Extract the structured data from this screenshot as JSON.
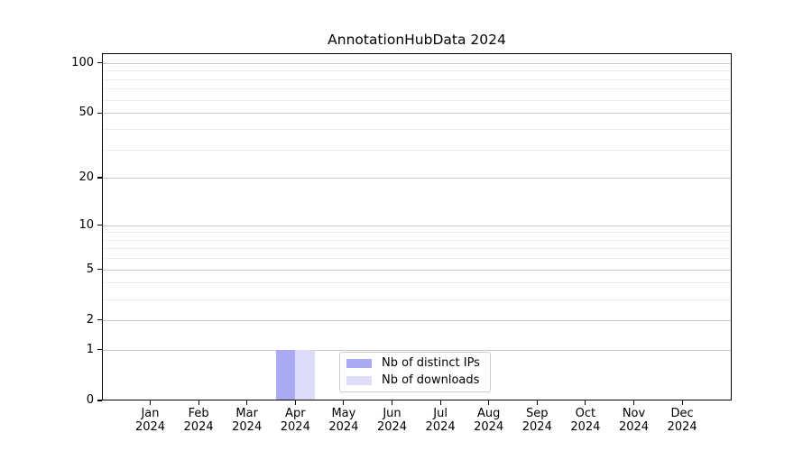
{
  "chart_data": {
    "type": "bar",
    "title": "AnnotationHubData 2024",
    "categories": [
      "Jan",
      "Feb",
      "Mar",
      "Apr",
      "May",
      "Jun",
      "Jul",
      "Aug",
      "Sep",
      "Oct",
      "Nov",
      "Dec"
    ],
    "category_sub": "2024",
    "series": [
      {
        "name": "Nb of distinct IPs",
        "color": "#aaaaf4",
        "values": [
          0,
          0,
          0,
          1,
          0,
          0,
          0,
          0,
          0,
          0,
          0,
          0
        ]
      },
      {
        "name": "Nb of downloads",
        "color": "#dcdcf8",
        "values": [
          0,
          0,
          0,
          1,
          0,
          0,
          0,
          0,
          0,
          0,
          0,
          0
        ]
      }
    ],
    "y_axis": {
      "scale": "log10(1+v)",
      "ticks": [
        0,
        1,
        2,
        5,
        10,
        20,
        50,
        100
      ],
      "minor_ticks": [
        3,
        4,
        6,
        7,
        8,
        9,
        30,
        40,
        60,
        70,
        80,
        90
      ],
      "max": 115
    },
    "xlabel": "",
    "ylabel": "",
    "grid": true,
    "legend_position": "lower center",
    "colors": {
      "spine": "#000000",
      "grid_major": "#c9c9c9",
      "grid_minor": "#ececec",
      "background": "#ffffff"
    }
  }
}
